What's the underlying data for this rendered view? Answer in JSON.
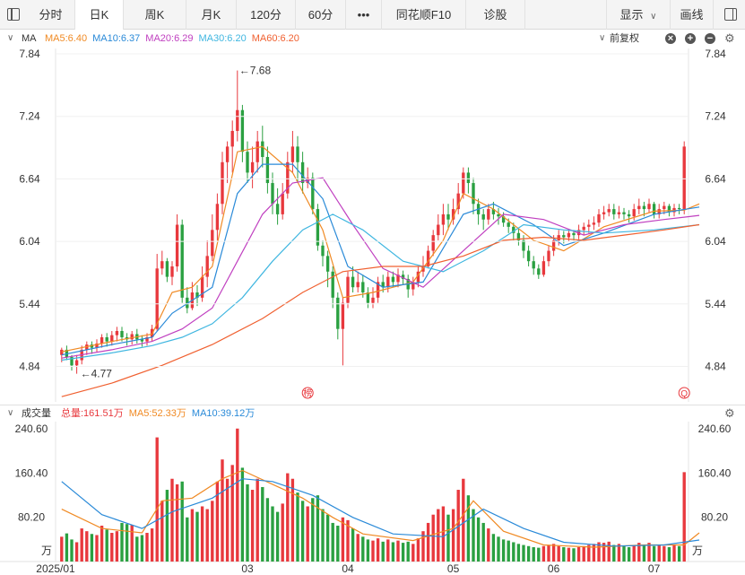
{
  "toolbar": {
    "tabs": [
      {
        "label": "分时"
      },
      {
        "label": "日K"
      },
      {
        "label": "周K"
      },
      {
        "label": "月K"
      },
      {
        "label": "120分"
      },
      {
        "label": "60分"
      },
      {
        "label": "•••"
      },
      {
        "label": "同花顺F10"
      },
      {
        "label": "诊股"
      }
    ],
    "active_tab": "日K",
    "display_label": "显示",
    "draw_label": "画线"
  },
  "price_panel": {
    "ma_title": "MA",
    "ma_entries": [
      {
        "label": "MA5:6.40",
        "color": "#f08a24"
      },
      {
        "label": "MA10:6.37",
        "color": "#2a8ad8"
      },
      {
        "label": "MA20:6.29",
        "color": "#c040c0"
      },
      {
        "label": "MA30:6.20",
        "color": "#3fb6e0"
      },
      {
        "label": "MA60:6.20",
        "color": "#f06030"
      }
    ],
    "adjust_label": "前复权",
    "max_annotation": "←7.68",
    "min_annotation": "←4.77",
    "event_marker_1": "榜",
    "event_marker_2": "Q"
  },
  "volume_panel": {
    "title": "成交量",
    "entries": [
      {
        "label": "总量:161.51万",
        "color": "#e8383d"
      },
      {
        "label": "MA5:52.33万",
        "color": "#f08a24"
      },
      {
        "label": "MA10:39.12万",
        "color": "#2a8ad8"
      }
    ],
    "unit": "万"
  },
  "colors": {
    "up": "#e8383d",
    "down": "#2aa041"
  },
  "chart_data": {
    "type": "candlestick",
    "price_axis": {
      "ticks": [
        7.84,
        7.24,
        6.64,
        6.04,
        5.44,
        4.84
      ],
      "ylim": [
        4.5,
        7.84
      ]
    },
    "volume_axis": {
      "ticks": [
        240.6,
        160.4,
        80.2
      ],
      "ylim": [
        0,
        240.6
      ],
      "unit": "万"
    },
    "x_tick_labels": [
      {
        "label": "2025/01",
        "index": 0
      },
      {
        "label": "03",
        "index": 37
      },
      {
        "label": "04",
        "index": 57
      },
      {
        "label": "05",
        "index": 78
      },
      {
        "label": "06",
        "index": 98
      },
      {
        "label": "07",
        "index": 118
      }
    ],
    "max_price": 7.68,
    "min_price": 4.77,
    "last_volume": 161.51,
    "last_ma5_volume": 52.33,
    "last_ma10_volume": 39.12,
    "ma_last": {
      "MA5": 6.4,
      "MA10": 6.37,
      "MA20": 6.29,
      "MA30": 6.2,
      "MA60": 6.2
    },
    "candles": [
      [
        4.95,
        5.0,
        4.88,
        5.02,
        45
      ],
      [
        5.0,
        4.93,
        4.9,
        5.04,
        51
      ],
      [
        4.93,
        4.85,
        4.8,
        4.95,
        40
      ],
      [
        4.85,
        4.9,
        4.77,
        4.95,
        35
      ],
      [
        4.9,
        5.0,
        4.86,
        5.04,
        60
      ],
      [
        5.0,
        5.05,
        4.95,
        5.08,
        55
      ],
      [
        5.05,
        5.02,
        4.96,
        5.08,
        50
      ],
      [
        5.02,
        5.06,
        4.98,
        5.1,
        48
      ],
      [
        5.06,
        5.12,
        5.02,
        5.15,
        65
      ],
      [
        5.12,
        5.08,
        5.03,
        5.16,
        58
      ],
      [
        5.08,
        5.14,
        5.04,
        5.18,
        52
      ],
      [
        5.14,
        5.18,
        5.08,
        5.22,
        55
      ],
      [
        5.18,
        5.12,
        5.08,
        5.22,
        70
      ],
      [
        5.12,
        5.1,
        5.04,
        5.16,
        68
      ],
      [
        5.1,
        5.15,
        5.05,
        5.18,
        66
      ],
      [
        5.15,
        5.1,
        5.06,
        5.2,
        45
      ],
      [
        5.1,
        5.08,
        5.03,
        5.14,
        48
      ],
      [
        5.08,
        5.12,
        5.04,
        5.16,
        52
      ],
      [
        5.12,
        5.2,
        5.08,
        5.24,
        60
      ],
      [
        5.2,
        5.78,
        5.18,
        5.92,
        225
      ],
      [
        5.78,
        5.85,
        5.72,
        5.95,
        110
      ],
      [
        5.85,
        5.7,
        5.65,
        5.88,
        130
      ],
      [
        5.7,
        5.8,
        5.62,
        5.85,
        150
      ],
      [
        5.8,
        6.2,
        5.75,
        6.3,
        140
      ],
      [
        6.2,
        5.5,
        5.45,
        6.25,
        145
      ],
      [
        5.5,
        5.4,
        5.35,
        5.6,
        80
      ],
      [
        5.4,
        5.55,
        5.38,
        5.65,
        95
      ],
      [
        5.55,
        5.5,
        5.42,
        5.62,
        90
      ],
      [
        5.5,
        5.7,
        5.46,
        5.8,
        100
      ],
      [
        5.7,
        5.9,
        5.6,
        6.05,
        95
      ],
      [
        5.9,
        6.15,
        5.85,
        6.3,
        110
      ],
      [
        6.15,
        6.4,
        6.05,
        6.5,
        145
      ],
      [
        6.4,
        6.8,
        6.3,
        6.9,
        185
      ],
      [
        6.8,
        6.95,
        6.6,
        7.0,
        150
      ],
      [
        6.95,
        7.1,
        6.7,
        7.2,
        175
      ],
      [
        7.1,
        7.3,
        7.0,
        7.68,
        241
      ],
      [
        7.3,
        6.9,
        6.8,
        7.35,
        170
      ],
      [
        6.9,
        6.7,
        6.6,
        7.0,
        140
      ],
      [
        6.7,
        6.8,
        6.55,
        6.95,
        130
      ],
      [
        6.8,
        7.0,
        6.7,
        7.1,
        150
      ],
      [
        7.0,
        6.85,
        6.75,
        7.15,
        135
      ],
      [
        6.85,
        6.6,
        6.5,
        6.95,
        115
      ],
      [
        6.6,
        6.4,
        6.3,
        6.7,
        100
      ],
      [
        6.4,
        6.3,
        6.2,
        6.55,
        90
      ],
      [
        6.3,
        6.5,
        6.25,
        6.6,
        105
      ],
      [
        6.5,
        6.8,
        6.45,
        6.9,
        160
      ],
      [
        6.8,
        6.95,
        6.7,
        7.1,
        150
      ],
      [
        6.95,
        6.8,
        6.6,
        7.05,
        125
      ],
      [
        6.8,
        6.6,
        6.5,
        6.9,
        110
      ],
      [
        6.6,
        6.65,
        6.55,
        6.75,
        100
      ],
      [
        6.65,
        6.35,
        6.3,
        6.7,
        115
      ],
      [
        6.35,
        6.0,
        5.95,
        6.4,
        120
      ],
      [
        6.0,
        5.9,
        5.8,
        6.05,
        95
      ],
      [
        5.9,
        5.75,
        5.6,
        5.95,
        85
      ],
      [
        5.75,
        5.5,
        5.4,
        5.8,
        70
      ],
      [
        5.5,
        5.2,
        5.1,
        5.55,
        65
      ],
      [
        5.2,
        5.45,
        4.85,
        5.5,
        80
      ],
      [
        5.45,
        5.7,
        5.4,
        5.75,
        75
      ],
      [
        5.7,
        5.6,
        5.55,
        5.8,
        60
      ],
      [
        5.6,
        5.65,
        5.55,
        5.75,
        50
      ],
      [
        5.65,
        5.55,
        5.5,
        5.72,
        45
      ],
      [
        5.55,
        5.45,
        5.4,
        5.6,
        40
      ],
      [
        5.45,
        5.5,
        5.4,
        5.6,
        38
      ],
      [
        5.5,
        5.65,
        5.45,
        5.7,
        42
      ],
      [
        5.65,
        5.6,
        5.55,
        5.72,
        36
      ],
      [
        5.6,
        5.7,
        5.55,
        5.75,
        40
      ],
      [
        5.7,
        5.65,
        5.6,
        5.75,
        35
      ],
      [
        5.65,
        5.72,
        5.6,
        5.78,
        38
      ],
      [
        5.72,
        5.68,
        5.62,
        5.76,
        34
      ],
      [
        5.68,
        5.58,
        5.5,
        5.72,
        36
      ],
      [
        5.58,
        5.65,
        5.52,
        5.7,
        32
      ],
      [
        5.65,
        5.75,
        5.6,
        5.8,
        42
      ],
      [
        5.75,
        5.8,
        5.7,
        5.9,
        55
      ],
      [
        5.8,
        5.95,
        5.78,
        6.0,
        70
      ],
      [
        5.95,
        6.1,
        5.9,
        6.15,
        85
      ],
      [
        6.1,
        6.2,
        6.05,
        6.3,
        95
      ],
      [
        6.2,
        6.3,
        6.1,
        6.4,
        100
      ],
      [
        6.3,
        6.25,
        6.15,
        6.4,
        85
      ],
      [
        6.25,
        6.35,
        6.2,
        6.45,
        95
      ],
      [
        6.35,
        6.5,
        6.3,
        6.6,
        130
      ],
      [
        6.5,
        6.7,
        6.45,
        6.75,
        150
      ],
      [
        6.7,
        6.6,
        6.5,
        6.75,
        120
      ],
      [
        6.6,
        6.4,
        6.3,
        6.65,
        95
      ],
      [
        6.4,
        6.3,
        6.2,
        6.45,
        80
      ],
      [
        6.3,
        6.25,
        6.15,
        6.35,
        70
      ],
      [
        6.25,
        6.35,
        6.2,
        6.4,
        60
      ],
      [
        6.35,
        6.3,
        6.25,
        6.42,
        50
      ],
      [
        6.3,
        6.28,
        6.2,
        6.36,
        45
      ],
      [
        6.28,
        6.22,
        6.18,
        6.32,
        40
      ],
      [
        6.22,
        6.18,
        6.12,
        6.26,
        38
      ],
      [
        6.18,
        6.12,
        6.05,
        6.22,
        35
      ],
      [
        6.12,
        6.05,
        6.0,
        6.16,
        32
      ],
      [
        6.05,
        5.95,
        5.88,
        6.1,
        30
      ],
      [
        5.95,
        5.85,
        5.8,
        6.0,
        28
      ],
      [
        5.85,
        5.78,
        5.72,
        5.9,
        26
      ],
      [
        5.78,
        5.72,
        5.68,
        5.82,
        25
      ],
      [
        5.72,
        5.85,
        5.7,
        5.9,
        28
      ],
      [
        5.85,
        5.95,
        5.8,
        6.0,
        30
      ],
      [
        5.95,
        6.05,
        5.9,
        6.1,
        32
      ],
      [
        6.05,
        6.1,
        6.0,
        6.15,
        28
      ],
      [
        6.1,
        6.08,
        6.02,
        6.14,
        26
      ],
      [
        6.08,
        6.12,
        6.04,
        6.16,
        25
      ],
      [
        6.12,
        6.1,
        6.05,
        6.15,
        24
      ],
      [
        6.1,
        6.15,
        6.06,
        6.2,
        26
      ],
      [
        6.15,
        6.18,
        6.1,
        6.22,
        28
      ],
      [
        6.18,
        6.2,
        6.12,
        6.25,
        30
      ],
      [
        6.2,
        6.22,
        6.15,
        6.28,
        32
      ],
      [
        6.22,
        6.3,
        6.18,
        6.35,
        35
      ],
      [
        6.3,
        6.32,
        6.25,
        6.38,
        34
      ],
      [
        6.32,
        6.35,
        6.28,
        6.4,
        36
      ],
      [
        6.35,
        6.3,
        6.25,
        6.4,
        30
      ],
      [
        6.3,
        6.32,
        6.26,
        6.38,
        32
      ],
      [
        6.32,
        6.3,
        6.25,
        6.36,
        28
      ],
      [
        6.3,
        6.28,
        6.22,
        6.34,
        26
      ],
      [
        6.28,
        6.35,
        6.24,
        6.4,
        30
      ],
      [
        6.35,
        6.38,
        6.3,
        6.45,
        34
      ],
      [
        6.38,
        6.35,
        6.28,
        6.42,
        30
      ],
      [
        6.35,
        6.4,
        6.32,
        6.45,
        34
      ],
      [
        6.4,
        6.3,
        6.26,
        6.42,
        28
      ],
      [
        6.3,
        6.35,
        6.26,
        6.4,
        30
      ],
      [
        6.35,
        6.38,
        6.3,
        6.42,
        28
      ],
      [
        6.38,
        6.32,
        6.28,
        6.4,
        26
      ],
      [
        6.32,
        6.36,
        6.28,
        6.4,
        30
      ],
      [
        6.36,
        6.35,
        6.3,
        6.4,
        28
      ],
      [
        6.35,
        6.95,
        6.3,
        7.0,
        162
      ]
    ],
    "ma_series": {
      "MA5": [
        [
          0,
          4.98
        ],
        [
          10,
          5.08
        ],
        [
          18,
          5.15
        ],
        [
          22,
          5.55
        ],
        [
          26,
          5.6
        ],
        [
          30,
          5.8
        ],
        [
          35,
          6.9
        ],
        [
          40,
          6.95
        ],
        [
          46,
          6.7
        ],
        [
          52,
          6.15
        ],
        [
          56,
          5.5
        ],
        [
          62,
          5.55
        ],
        [
          70,
          5.65
        ],
        [
          76,
          6.05
        ],
        [
          80,
          6.5
        ],
        [
          86,
          6.35
        ],
        [
          94,
          6.05
        ],
        [
          100,
          5.95
        ],
        [
          108,
          6.18
        ],
        [
          118,
          6.33
        ],
        [
          124,
          6.34
        ],
        [
          127,
          6.4
        ]
      ],
      "MA10": [
        [
          0,
          4.95
        ],
        [
          10,
          5.05
        ],
        [
          18,
          5.12
        ],
        [
          22,
          5.35
        ],
        [
          30,
          5.6
        ],
        [
          35,
          6.5
        ],
        [
          40,
          6.78
        ],
        [
          46,
          6.78
        ],
        [
          52,
          6.45
        ],
        [
          57,
          5.8
        ],
        [
          64,
          5.6
        ],
        [
          72,
          5.65
        ],
        [
          80,
          6.3
        ],
        [
          86,
          6.4
        ],
        [
          94,
          6.2
        ],
        [
          100,
          6.0
        ],
        [
          108,
          6.12
        ],
        [
          118,
          6.3
        ],
        [
          127,
          6.37
        ]
      ],
      "MA20": [
        [
          0,
          4.92
        ],
        [
          10,
          5.0
        ],
        [
          18,
          5.08
        ],
        [
          24,
          5.2
        ],
        [
          30,
          5.4
        ],
        [
          35,
          5.85
        ],
        [
          40,
          6.3
        ],
        [
          46,
          6.6
        ],
        [
          52,
          6.65
        ],
        [
          58,
          6.2
        ],
        [
          64,
          5.78
        ],
        [
          72,
          5.6
        ],
        [
          80,
          5.95
        ],
        [
          88,
          6.3
        ],
        [
          96,
          6.25
        ],
        [
          104,
          6.1
        ],
        [
          112,
          6.2
        ],
        [
          120,
          6.25
        ],
        [
          127,
          6.29
        ]
      ],
      "MA30": [
        [
          0,
          4.9
        ],
        [
          10,
          4.97
        ],
        [
          18,
          5.04
        ],
        [
          24,
          5.12
        ],
        [
          30,
          5.25
        ],
        [
          36,
          5.5
        ],
        [
          42,
          5.85
        ],
        [
          48,
          6.15
        ],
        [
          54,
          6.3
        ],
        [
          60,
          6.15
        ],
        [
          68,
          5.85
        ],
        [
          76,
          5.75
        ],
        [
          84,
          5.95
        ],
        [
          92,
          6.2
        ],
        [
          100,
          6.15
        ],
        [
          108,
          6.12
        ],
        [
          118,
          6.15
        ],
        [
          127,
          6.2
        ]
      ],
      "MA60": [
        [
          0,
          4.55
        ],
        [
          10,
          4.68
        ],
        [
          20,
          4.85
        ],
        [
          30,
          5.05
        ],
        [
          40,
          5.3
        ],
        [
          48,
          5.55
        ],
        [
          56,
          5.75
        ],
        [
          64,
          5.8
        ],
        [
          72,
          5.8
        ],
        [
          80,
          5.9
        ],
        [
          88,
          6.05
        ],
        [
          96,
          6.08
        ],
        [
          104,
          6.05
        ],
        [
          112,
          6.1
        ],
        [
          120,
          6.15
        ],
        [
          127,
          6.2
        ]
      ]
    },
    "volume_ma": {
      "MA5": [
        [
          0,
          95
        ],
        [
          8,
          60
        ],
        [
          16,
          52
        ],
        [
          20,
          110
        ],
        [
          26,
          115
        ],
        [
          32,
          150
        ],
        [
          36,
          165
        ],
        [
          42,
          140
        ],
        [
          48,
          115
        ],
        [
          54,
          80
        ],
        [
          60,
          50
        ],
        [
          70,
          38
        ],
        [
          78,
          60
        ],
        [
          82,
          110
        ],
        [
          88,
          55
        ],
        [
          96,
          30
        ],
        [
          106,
          26
        ],
        [
          116,
          30
        ],
        [
          124,
          30
        ],
        [
          127,
          52
        ]
      ],
      "MA10": [
        [
          0,
          145
        ],
        [
          8,
          85
        ],
        [
          16,
          60
        ],
        [
          22,
          90
        ],
        [
          30,
          115
        ],
        [
          36,
          150
        ],
        [
          42,
          145
        ],
        [
          50,
          120
        ],
        [
          58,
          80
        ],
        [
          66,
          50
        ],
        [
          76,
          45
        ],
        [
          84,
          95
        ],
        [
          92,
          60
        ],
        [
          100,
          35
        ],
        [
          110,
          28
        ],
        [
          120,
          30
        ],
        [
          127,
          39
        ]
      ]
    }
  }
}
